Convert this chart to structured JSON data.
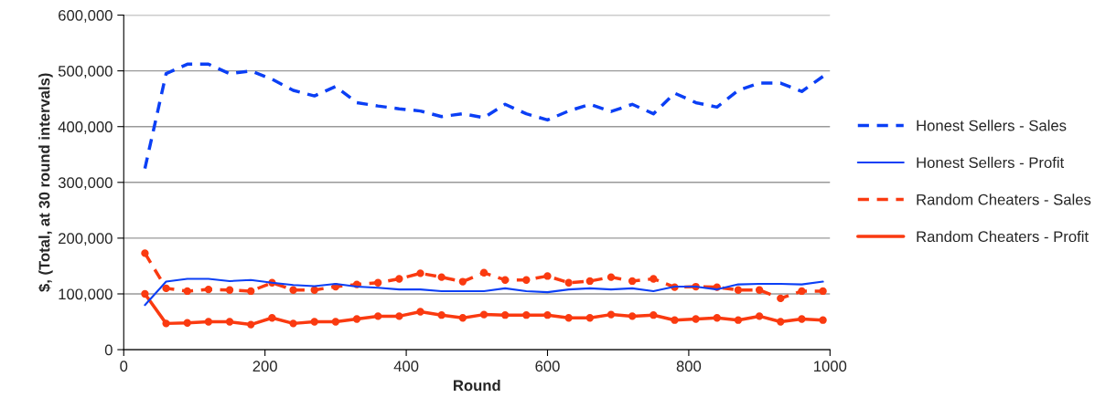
{
  "chart_data": {
    "type": "line",
    "xlabel": "Round",
    "ylabel": "$, (Total, at 30 round intervals)",
    "x": [
      30,
      60,
      90,
      120,
      150,
      180,
      210,
      240,
      270,
      300,
      330,
      360,
      390,
      420,
      450,
      480,
      510,
      540,
      570,
      600,
      630,
      660,
      690,
      720,
      750,
      780,
      810,
      840,
      870,
      900,
      930,
      960,
      990
    ],
    "series": [
      {
        "name": "Honest Sellers - Sales",
        "color": "#0b3ff5",
        "line_style": "dashed",
        "marker": "none",
        "values": [
          325000,
          495000,
          512000,
          512000,
          495000,
          500000,
          485000,
          465000,
          455000,
          472000,
          443000,
          437000,
          432000,
          428000,
          418000,
          423000,
          416000,
          440000,
          423000,
          412000,
          428000,
          440000,
          427000,
          440000,
          423000,
          460000,
          443000,
          435000,
          465000,
          478000,
          478000,
          463000,
          490000
        ]
      },
      {
        "name": "Honest Sellers - Profit",
        "color": "#0b3ff5",
        "line_style": "solid",
        "marker": "none",
        "values": [
          80000,
          122000,
          127000,
          127000,
          123000,
          125000,
          120000,
          116000,
          114000,
          118000,
          113000,
          111000,
          108000,
          108000,
          105000,
          105000,
          105000,
          110000,
          105000,
          103000,
          108000,
          110000,
          108000,
          110000,
          105000,
          113000,
          113000,
          108000,
          117000,
          118000,
          118000,
          117000,
          122000
        ]
      },
      {
        "name": "Random Cheaters - Sales",
        "color": "#fa3a10",
        "line_style": "dashed",
        "marker": "circle",
        "values": [
          173000,
          110000,
          105000,
          108000,
          107000,
          105000,
          120000,
          107000,
          107000,
          113000,
          117000,
          120000,
          127000,
          137000,
          130000,
          122000,
          138000,
          125000,
          125000,
          132000,
          120000,
          123000,
          130000,
          123000,
          127000,
          112000,
          113000,
          112000,
          107000,
          107000,
          92000,
          105000,
          105000
        ]
      },
      {
        "name": "Random Cheaters - Profit",
        "color": "#fa3a10",
        "line_style": "solid",
        "marker": "circle",
        "values": [
          100000,
          47000,
          48000,
          50000,
          50000,
          45000,
          57000,
          47000,
          50000,
          50000,
          55000,
          60000,
          60000,
          68000,
          62000,
          57000,
          63000,
          62000,
          62000,
          62000,
          57000,
          57000,
          63000,
          60000,
          62000,
          53000,
          55000,
          57000,
          53000,
          60000,
          50000,
          55000,
          53000
        ]
      }
    ],
    "xlim": [
      0,
      1000
    ],
    "xticks": [
      0,
      200,
      400,
      600,
      800,
      1000
    ],
    "ylim": [
      0,
      600000
    ],
    "yticks": [
      {
        "value": 0,
        "label": "0"
      },
      {
        "value": 100000,
        "label": "100,000"
      },
      {
        "value": 200000,
        "label": "200,000"
      },
      {
        "value": 300000,
        "label": "300,000"
      },
      {
        "value": 400000,
        "label": "400,000"
      },
      {
        "value": 500000,
        "label": "500,000"
      },
      {
        "value": 600000,
        "label": "600,000"
      }
    ],
    "grid": "y",
    "legend": "right"
  }
}
